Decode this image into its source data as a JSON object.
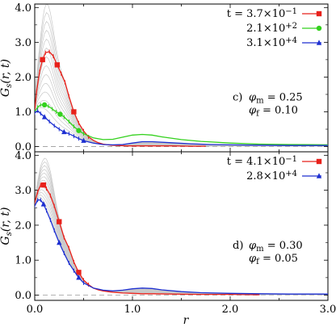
{
  "chart_data": [
    {
      "type": "line",
      "panel": "top",
      "xlabel": "",
      "ylabel": "G_s(r, t)",
      "xlim": [
        0,
        3.0
      ],
      "ylim": [
        -0.15,
        4.1
      ],
      "yticks": [
        "0.0",
        "1.0",
        "2.0",
        "3.0",
        "4.0"
      ],
      "annotation": {
        "label": "c)",
        "phi_m": "φ_m = 0.25",
        "phi_f": "φ_f = 0.10"
      },
      "series": [
        {
          "name": "t = 3.7×10^−1",
          "color": "#e8211b",
          "marker": "square",
          "x": [
            0.0,
            0.02,
            0.05,
            0.08,
            0.11,
            0.15,
            0.19,
            0.23,
            0.27,
            0.31,
            0.35,
            0.4,
            0.45,
            0.5,
            0.55,
            0.6,
            0.65,
            0.7,
            0.78,
            0.85,
            0.95,
            1.05,
            1.2,
            1.4,
            1.6,
            1.75
          ],
          "y": [
            1.05,
            1.6,
            2.15,
            2.5,
            2.7,
            2.73,
            2.6,
            2.35,
            2.1,
            1.85,
            1.45,
            1.0,
            0.68,
            0.45,
            0.28,
            0.18,
            0.11,
            0.07,
            0.04,
            0.03,
            0.02,
            0.02,
            0.02,
            0.02,
            0.01,
            0.01
          ]
        },
        {
          "name": "2.1×10^+2",
          "color": "#33d11d",
          "marker": "circle",
          "x": [
            0.0,
            0.03,
            0.06,
            0.1,
            0.14,
            0.18,
            0.22,
            0.26,
            0.3,
            0.35,
            0.4,
            0.45,
            0.5,
            0.6,
            0.7,
            0.8,
            0.9,
            1.0,
            1.1,
            1.2,
            1.3,
            1.5,
            1.7,
            2.0,
            2.3,
            2.6,
            3.0
          ],
          "y": [
            1.0,
            1.13,
            1.2,
            1.2,
            1.16,
            1.08,
            1.0,
            0.93,
            0.85,
            0.72,
            0.58,
            0.46,
            0.37,
            0.25,
            0.2,
            0.21,
            0.27,
            0.33,
            0.35,
            0.33,
            0.28,
            0.2,
            0.15,
            0.1,
            0.07,
            0.06,
            0.05
          ]
        },
        {
          "name": "3.1×10^+4",
          "color": "#1d2fd1",
          "marker": "triangle",
          "x": [
            0.0,
            0.03,
            0.06,
            0.1,
            0.15,
            0.2,
            0.25,
            0.3,
            0.35,
            0.4,
            0.45,
            0.5,
            0.6,
            0.7,
            0.8,
            0.9,
            1.0,
            1.1,
            1.2,
            1.4,
            1.6,
            1.8,
            2.0,
            2.3,
            2.6,
            3.0
          ],
          "y": [
            0.97,
            1.03,
            0.95,
            0.85,
            0.72,
            0.6,
            0.5,
            0.42,
            0.37,
            0.3,
            0.23,
            0.17,
            0.1,
            0.06,
            0.05,
            0.06,
            0.1,
            0.14,
            0.14,
            0.11,
            0.08,
            0.06,
            0.05,
            0.04,
            0.03,
            0.03
          ]
        }
      ]
    },
    {
      "type": "line",
      "panel": "bottom",
      "xlabel": "r",
      "ylabel": "G_s(r, t)",
      "xlim": [
        0,
        3.0
      ],
      "ylim": [
        -0.15,
        4.1
      ],
      "xticks": [
        "0.0",
        "1.0",
        "2.0",
        "3.0"
      ],
      "yticks": [
        "0.0",
        "1.0",
        "2.0",
        "3.0",
        "4.0"
      ],
      "annotation": {
        "label": "d)",
        "phi_m": "φ_m = 0.30",
        "phi_f": "φ_f = 0.05"
      },
      "series": [
        {
          "name": "t = 4.1×10^−1",
          "color": "#e8211b",
          "marker": "square",
          "x": [
            0.0,
            0.03,
            0.06,
            0.09,
            0.12,
            0.16,
            0.2,
            0.25,
            0.3,
            0.35,
            0.4,
            0.45,
            0.5,
            0.55,
            0.6,
            0.65,
            0.7,
            0.75,
            0.8,
            0.9,
            1.0,
            1.1,
            1.2,
            1.4,
            1.7,
            2.0,
            2.3
          ],
          "y": [
            2.65,
            2.95,
            3.15,
            3.15,
            3.05,
            2.85,
            2.55,
            2.1,
            1.65,
            1.35,
            0.95,
            0.65,
            0.43,
            0.3,
            0.2,
            0.15,
            0.12,
            0.1,
            0.08,
            0.06,
            0.05,
            0.04,
            0.04,
            0.03,
            0.02,
            0.02,
            0.01
          ]
        },
        {
          "name": "2.8×10^+4",
          "color": "#1d2fd1",
          "marker": "triangle",
          "x": [
            0.0,
            0.03,
            0.06,
            0.09,
            0.12,
            0.16,
            0.2,
            0.25,
            0.3,
            0.35,
            0.4,
            0.45,
            0.5,
            0.6,
            0.7,
            0.8,
            0.9,
            1.0,
            1.1,
            1.2,
            1.3,
            1.5,
            1.7,
            2.0,
            2.3,
            2.6,
            3.0
          ],
          "y": [
            2.55,
            2.72,
            2.72,
            2.6,
            2.42,
            2.15,
            1.85,
            1.5,
            1.2,
            0.92,
            0.7,
            0.5,
            0.35,
            0.2,
            0.14,
            0.12,
            0.14,
            0.18,
            0.2,
            0.19,
            0.15,
            0.1,
            0.07,
            0.05,
            0.04,
            0.03,
            0.03
          ]
        }
      ]
    }
  ]
}
